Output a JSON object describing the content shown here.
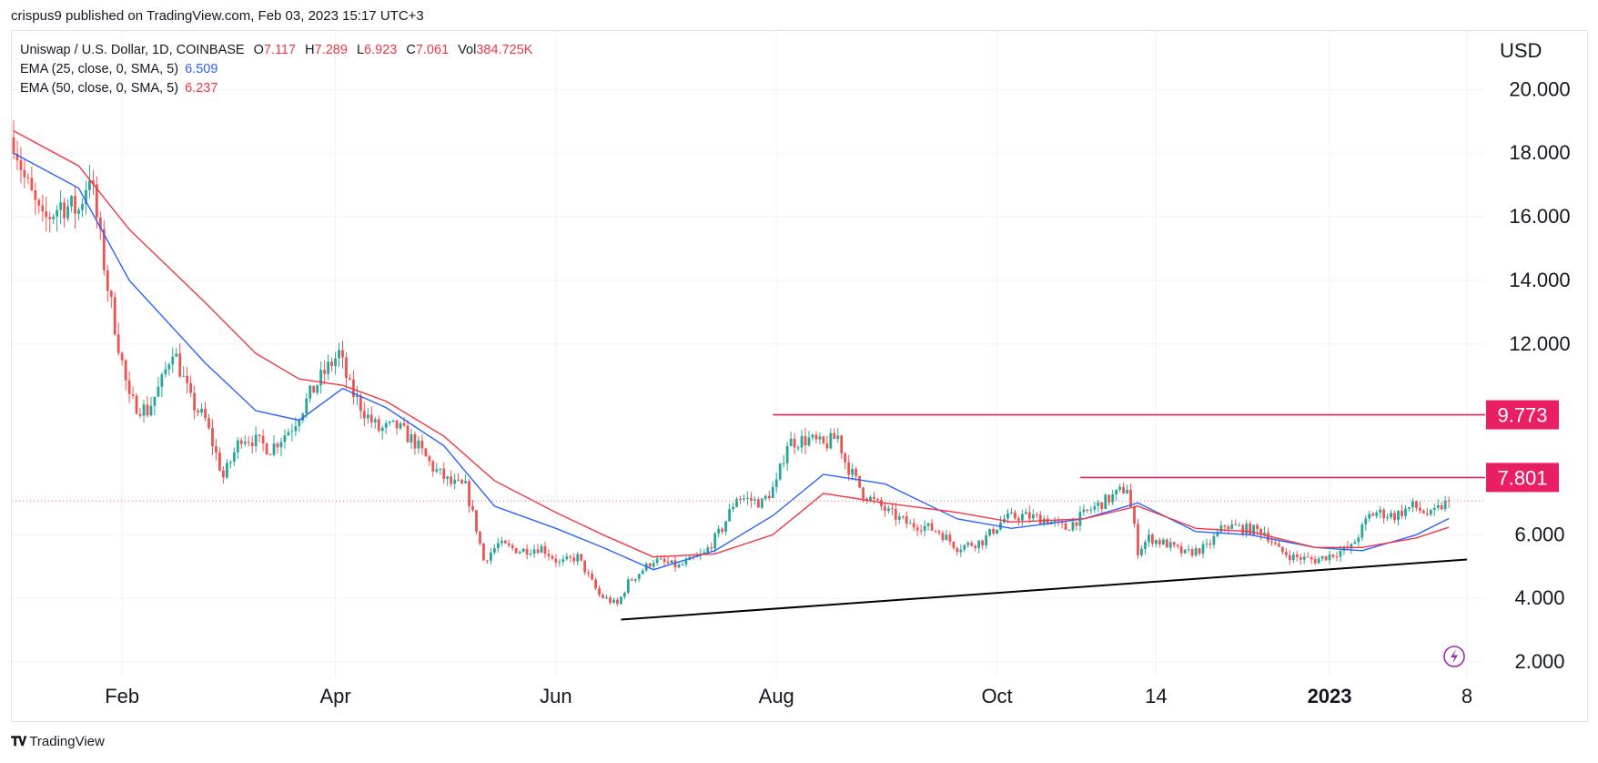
{
  "header": {
    "published_line": "crispus9 published on TradingView.com, Feb 03, 2023 15:17 UTC+3"
  },
  "legend": {
    "symbol": "Uniswap / U.S. Dollar, 1D, COINBASE",
    "open_key": "O",
    "open": "7.117",
    "high_key": "H",
    "high": "7.289",
    "low_key": "L",
    "low": "6.923",
    "close_key": "C",
    "close": "7.061",
    "vol_key": "Vol",
    "vol": "384.725K",
    "ema25_label": "EMA (25, close, 0, SMA, 5)",
    "ema25_value": "6.509",
    "ema50_label": "EMA (50, close, 0, SMA, 5)",
    "ema50_value": "6.237"
  },
  "footer": {
    "brand": "TradingView"
  },
  "colors": {
    "up": "#26a69a",
    "down": "#ef5350",
    "ema25": "#2962ff",
    "ema50": "#f23645",
    "level_line": "#e91e63",
    "trendline": "#000000",
    "grid": "#f0f3fa",
    "text": "#131722"
  },
  "chart_data": {
    "type": "candlestick",
    "ylabel": "USD",
    "ylim": [
      2,
      21.3
    ],
    "yticks": [
      "20.000",
      "18.000",
      "16.000",
      "14.000",
      "12.000",
      "6.000",
      "4.000",
      "2.000"
    ],
    "ytick_values": [
      20,
      18,
      16,
      14,
      12,
      6,
      4,
      2
    ],
    "xticks": [
      {
        "label": "Feb",
        "date": "2022-02-01",
        "bold": false
      },
      {
        "label": "Apr",
        "date": "2022-04-01",
        "bold": false
      },
      {
        "label": "Jun",
        "date": "2022-06-01",
        "bold": false
      },
      {
        "label": "Aug",
        "date": "2022-08-01",
        "bold": false
      },
      {
        "label": "Oct",
        "date": "2022-10-01",
        "bold": false
      },
      {
        "label": "14",
        "date": "2022-11-14",
        "bold": false
      },
      {
        "label": "2023",
        "date": "2023-01-01",
        "bold": true
      },
      {
        "label": "8",
        "date": "2023-02-08",
        "bold": false
      }
    ],
    "x_range": [
      "2022-01-02",
      "2023-02-08"
    ],
    "price_series": {
      "name": "Uniswap / U.S. Dollar",
      "x": [
        "2022-01-02",
        "2022-01-05",
        "2022-01-10",
        "2022-01-15",
        "2022-01-20",
        "2022-01-23",
        "2022-01-28",
        "2022-02-03",
        "2022-02-08",
        "2022-02-12",
        "2022-02-15",
        "2022-02-20",
        "2022-02-24",
        "2022-03-01",
        "2022-03-06",
        "2022-03-09",
        "2022-03-14",
        "2022-03-20",
        "2022-03-25",
        "2022-03-29",
        "2022-04-02",
        "2022-04-05",
        "2022-04-10",
        "2022-04-13",
        "2022-04-18",
        "2022-04-23",
        "2022-04-28",
        "2022-05-03",
        "2022-05-07",
        "2022-05-10",
        "2022-05-12",
        "2022-05-16",
        "2022-05-22",
        "2022-05-28",
        "2022-06-02",
        "2022-06-07",
        "2022-06-13",
        "2022-06-18",
        "2022-06-21",
        "2022-06-28",
        "2022-07-05",
        "2022-07-12",
        "2022-07-17",
        "2022-07-21",
        "2022-07-28",
        "2022-08-01",
        "2022-08-04",
        "2022-08-10",
        "2022-08-14",
        "2022-08-18",
        "2022-08-20",
        "2022-08-25",
        "2022-09-01",
        "2022-09-07",
        "2022-09-10",
        "2022-09-15",
        "2022-09-20",
        "2022-09-27",
        "2022-10-03",
        "2022-10-08",
        "2022-10-14",
        "2022-10-20",
        "2022-10-27",
        "2022-11-02",
        "2022-11-06",
        "2022-11-08",
        "2022-11-09",
        "2022-11-12",
        "2022-11-17",
        "2022-11-22",
        "2022-11-28",
        "2022-12-03",
        "2022-12-08",
        "2022-12-14",
        "2022-12-18",
        "2022-12-22",
        "2022-12-28",
        "2023-01-02",
        "2023-01-07",
        "2023-01-12",
        "2023-01-14",
        "2023-01-19",
        "2023-01-24",
        "2023-01-29",
        "2023-02-01",
        "2023-02-03"
      ],
      "y": [
        18.5,
        17.2,
        15.8,
        16.4,
        16.2,
        17.4,
        13.8,
        10.2,
        9.9,
        10.8,
        11.9,
        10.2,
        9.6,
        7.8,
        9.1,
        9.0,
        8.7,
        9.4,
        10.4,
        11.1,
        11.7,
        10.6,
        9.7,
        9.3,
        9.4,
        8.9,
        8.1,
        7.6,
        7.5,
        6.2,
        5.2,
        5.7,
        5.5,
        5.6,
        5.1,
        5.3,
        4.1,
        3.8,
        4.5,
        5.2,
        5.0,
        5.4,
        6.2,
        7.2,
        7.0,
        7.6,
        8.9,
        9.0,
        8.8,
        9.1,
        8.3,
        7.3,
        6.7,
        6.3,
        6.3,
        6.1,
        5.6,
        5.8,
        6.5,
        6.6,
        6.5,
        6.2,
        6.8,
        7.2,
        7.5,
        6.2,
        5.5,
        5.9,
        5.7,
        5.4,
        5.6,
        6.3,
        6.2,
        6.1,
        5.5,
        5.3,
        5.2,
        5.4,
        5.6,
        6.6,
        6.7,
        6.6,
        6.9,
        6.6,
        6.9,
        7.061
      ]
    },
    "series": [
      {
        "name": "EMA (25, close, 0, SMA, 5)",
        "x": [
          "2022-01-02",
          "2022-01-20",
          "2022-02-03",
          "2022-02-24",
          "2022-03-10",
          "2022-03-22",
          "2022-04-03",
          "2022-04-15",
          "2022-05-01",
          "2022-05-15",
          "2022-06-01",
          "2022-06-14",
          "2022-06-28",
          "2022-07-15",
          "2022-07-31",
          "2022-08-14",
          "2022-08-31",
          "2022-09-20",
          "2022-10-05",
          "2022-10-25",
          "2022-11-09",
          "2022-11-25",
          "2022-12-10",
          "2022-12-28",
          "2023-01-10",
          "2023-01-25",
          "2023-02-03"
        ],
        "y": [
          18.0,
          16.9,
          14.0,
          11.4,
          9.9,
          9.6,
          10.6,
          10.0,
          8.8,
          6.9,
          6.2,
          5.6,
          4.9,
          5.5,
          6.6,
          7.9,
          7.6,
          6.5,
          6.2,
          6.5,
          7.0,
          6.1,
          6.0,
          5.6,
          5.5,
          6.0,
          6.509
        ]
      },
      {
        "name": "EMA (50, close, 0, SMA, 5)",
        "x": [
          "2022-01-02",
          "2022-01-20",
          "2022-02-03",
          "2022-02-24",
          "2022-03-10",
          "2022-03-22",
          "2022-04-03",
          "2022-04-15",
          "2022-05-01",
          "2022-05-15",
          "2022-06-01",
          "2022-06-14",
          "2022-06-28",
          "2022-07-15",
          "2022-07-31",
          "2022-08-14",
          "2022-08-31",
          "2022-09-20",
          "2022-10-05",
          "2022-10-25",
          "2022-11-09",
          "2022-11-25",
          "2022-12-10",
          "2022-12-28",
          "2023-01-10",
          "2023-01-25",
          "2023-02-03"
        ],
        "y": [
          18.7,
          17.6,
          15.6,
          13.3,
          11.7,
          10.9,
          10.7,
          10.2,
          9.1,
          7.7,
          6.7,
          6.0,
          5.3,
          5.4,
          6.0,
          7.3,
          7.0,
          6.7,
          6.4,
          6.5,
          6.9,
          6.2,
          6.1,
          5.6,
          5.6,
          5.9,
          6.237
        ]
      }
    ],
    "annotations": [
      {
        "type": "horizontal_level",
        "value": 9.773,
        "label": "9.773",
        "from": "2022-07-31"
      },
      {
        "type": "horizontal_level",
        "value": 7.801,
        "label": "7.801",
        "from": "2022-10-24"
      },
      {
        "type": "trendline",
        "from_date": "2022-06-19",
        "from_value": 3.33,
        "to_date": "2023-02-08",
        "to_value": 5.22
      },
      {
        "type": "last_price_line",
        "value": 7.061
      }
    ],
    "grid": true
  }
}
